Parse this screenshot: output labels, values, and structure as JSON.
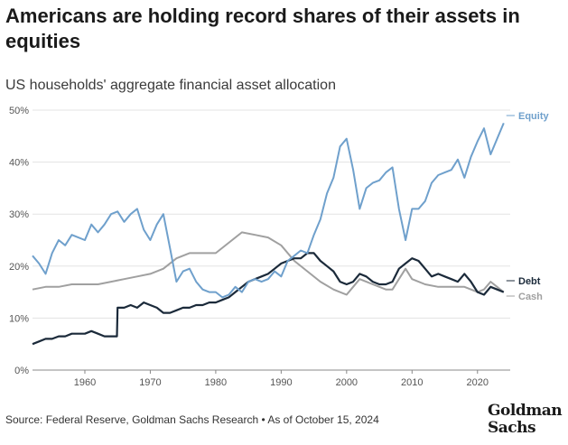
{
  "title": "Americans are holding record shares of their assets in equities",
  "subtitle": "US households' aggregate financial asset allocation",
  "footer": "Source: Federal Reserve, Goldman Sachs Research • As of October 15, 2024",
  "logo": {
    "line1": "Goldman",
    "line2": "Sachs"
  },
  "colors": {
    "equity": "#6fa0cc",
    "debt": "#1b2a3a",
    "cash": "#a0a0a0"
  },
  "chart_data": {
    "type": "line",
    "xlim": [
      1952,
      2025
    ],
    "ylim": [
      0,
      50
    ],
    "x_ticks": [
      1960,
      1970,
      1980,
      1990,
      2000,
      2010,
      2020
    ],
    "y_ticks": [
      0,
      10,
      20,
      30,
      40,
      50
    ],
    "y_tick_labels": [
      "0%",
      "10%",
      "20%",
      "30%",
      "40%",
      "50%"
    ],
    "grid": "horizontal",
    "series": [
      {
        "name": "Equity",
        "color": "#6fa0cc",
        "points": [
          [
            1952,
            22
          ],
          [
            1953,
            20.5
          ],
          [
            1954,
            18.5
          ],
          [
            1955,
            22.5
          ],
          [
            1956,
            25
          ],
          [
            1957,
            24
          ],
          [
            1958,
            26
          ],
          [
            1959,
            25.5
          ],
          [
            1960,
            25
          ],
          [
            1961,
            28
          ],
          [
            1962,
            26.5
          ],
          [
            1963,
            28
          ],
          [
            1964,
            30
          ],
          [
            1965,
            30.5
          ],
          [
            1966,
            28.5
          ],
          [
            1967,
            30
          ],
          [
            1968,
            31
          ],
          [
            1969,
            27
          ],
          [
            1970,
            25
          ],
          [
            1971,
            28
          ],
          [
            1972,
            30
          ],
          [
            1973,
            23.5
          ],
          [
            1974,
            17
          ],
          [
            1975,
            19
          ],
          [
            1976,
            19.5
          ],
          [
            1977,
            17
          ],
          [
            1978,
            15.5
          ],
          [
            1979,
            15
          ],
          [
            1980,
            15
          ],
          [
            1981,
            14
          ],
          [
            1982,
            14.5
          ],
          [
            1983,
            16
          ],
          [
            1984,
            15
          ],
          [
            1985,
            17
          ],
          [
            1986,
            17.5
          ],
          [
            1987,
            17
          ],
          [
            1988,
            17.5
          ],
          [
            1989,
            19
          ],
          [
            1990,
            18
          ],
          [
            1991,
            21
          ],
          [
            1992,
            22
          ],
          [
            1993,
            23
          ],
          [
            1994,
            22.5
          ],
          [
            1995,
            26
          ],
          [
            1996,
            29
          ],
          [
            1997,
            34
          ],
          [
            1998,
            37
          ],
          [
            1999,
            43
          ],
          [
            2000,
            44.5
          ],
          [
            2001,
            38.5
          ],
          [
            2002,
            31
          ],
          [
            2003,
            35
          ],
          [
            2004,
            36
          ],
          [
            2005,
            36.5
          ],
          [
            2006,
            38
          ],
          [
            2007,
            39
          ],
          [
            2008,
            31
          ],
          [
            2009,
            25
          ],
          [
            2010,
            31
          ],
          [
            2011,
            31
          ],
          [
            2012,
            32.5
          ],
          [
            2013,
            36
          ],
          [
            2014,
            37.5
          ],
          [
            2015,
            38
          ],
          [
            2016,
            38.5
          ],
          [
            2017,
            40.5
          ],
          [
            2018,
            37
          ],
          [
            2019,
            41
          ],
          [
            2020,
            44
          ],
          [
            2021,
            46.5
          ],
          [
            2022,
            41.5
          ],
          [
            2023,
            44.5
          ],
          [
            2024,
            47.5
          ]
        ]
      },
      {
        "name": "Debt",
        "color": "#1b2a3a",
        "points": [
          [
            1952,
            5
          ],
          [
            1953,
            5.5
          ],
          [
            1954,
            6
          ],
          [
            1955,
            6
          ],
          [
            1956,
            6.5
          ],
          [
            1957,
            6.5
          ],
          [
            1958,
            7
          ],
          [
            1959,
            7
          ],
          [
            1960,
            7
          ],
          [
            1961,
            7.5
          ],
          [
            1962,
            7
          ],
          [
            1963,
            6.5
          ],
          [
            1964,
            6.5
          ],
          [
            1964.9,
            6.5
          ],
          [
            1965,
            12
          ],
          [
            1966,
            12
          ],
          [
            1967,
            12.5
          ],
          [
            1968,
            12
          ],
          [
            1969,
            13
          ],
          [
            1970,
            12.5
          ],
          [
            1971,
            12
          ],
          [
            1972,
            11
          ],
          [
            1973,
            11
          ],
          [
            1974,
            11.5
          ],
          [
            1975,
            12
          ],
          [
            1976,
            12
          ],
          [
            1977,
            12.5
          ],
          [
            1978,
            12.5
          ],
          [
            1979,
            13
          ],
          [
            1980,
            13
          ],
          [
            1981,
            13.5
          ],
          [
            1982,
            14
          ],
          [
            1983,
            15
          ],
          [
            1984,
            16
          ],
          [
            1985,
            17
          ],
          [
            1986,
            17.5
          ],
          [
            1987,
            18
          ],
          [
            1988,
            18.5
          ],
          [
            1989,
            19.5
          ],
          [
            1990,
            20.5
          ],
          [
            1991,
            21
          ],
          [
            1992,
            21.5
          ],
          [
            1993,
            21.5
          ],
          [
            1994,
            22.5
          ],
          [
            1995,
            22.5
          ],
          [
            1996,
            21
          ],
          [
            1997,
            20
          ],
          [
            1998,
            19
          ],
          [
            1999,
            17
          ],
          [
            2000,
            16.5
          ],
          [
            2001,
            17
          ],
          [
            2002,
            18.5
          ],
          [
            2003,
            18
          ],
          [
            2004,
            17
          ],
          [
            2005,
            16.5
          ],
          [
            2006,
            16.5
          ],
          [
            2007,
            17
          ],
          [
            2008,
            19.5
          ],
          [
            2009,
            20.5
          ],
          [
            2010,
            21.5
          ],
          [
            2011,
            21
          ],
          [
            2012,
            19.5
          ],
          [
            2013,
            18
          ],
          [
            2014,
            18.5
          ],
          [
            2015,
            18
          ],
          [
            2016,
            17.5
          ],
          [
            2017,
            17
          ],
          [
            2018,
            18.5
          ],
          [
            2019,
            17
          ],
          [
            2020,
            15
          ],
          [
            2021,
            14.5
          ],
          [
            2022,
            16
          ],
          [
            2023,
            15.5
          ],
          [
            2024,
            15
          ]
        ]
      },
      {
        "name": "Cash",
        "color": "#a0a0a0",
        "points": [
          [
            1952,
            15.5
          ],
          [
            1954,
            16
          ],
          [
            1956,
            16
          ],
          [
            1958,
            16.5
          ],
          [
            1960,
            16.5
          ],
          [
            1962,
            16.5
          ],
          [
            1964,
            17
          ],
          [
            1966,
            17.5
          ],
          [
            1968,
            18
          ],
          [
            1970,
            18.5
          ],
          [
            1972,
            19.5
          ],
          [
            1974,
            21.5
          ],
          [
            1976,
            22.5
          ],
          [
            1978,
            22.5
          ],
          [
            1980,
            22.5
          ],
          [
            1982,
            24.5
          ],
          [
            1984,
            26.5
          ],
          [
            1986,
            26
          ],
          [
            1988,
            25.5
          ],
          [
            1990,
            24
          ],
          [
            1992,
            21
          ],
          [
            1994,
            19
          ],
          [
            1996,
            17
          ],
          [
            1998,
            15.5
          ],
          [
            2000,
            14.5
          ],
          [
            2001,
            16
          ],
          [
            2002,
            17.5
          ],
          [
            2003,
            17
          ],
          [
            2004,
            16.5
          ],
          [
            2005,
            16
          ],
          [
            2006,
            15.5
          ],
          [
            2007,
            15.5
          ],
          [
            2008,
            17.5
          ],
          [
            2009,
            19.5
          ],
          [
            2010,
            17.5
          ],
          [
            2012,
            16.5
          ],
          [
            2014,
            16
          ],
          [
            2016,
            16
          ],
          [
            2018,
            16
          ],
          [
            2020,
            15
          ],
          [
            2021,
            15.5
          ],
          [
            2022,
            17
          ],
          [
            2023,
            16
          ],
          [
            2024,
            15
          ]
        ]
      }
    ]
  }
}
